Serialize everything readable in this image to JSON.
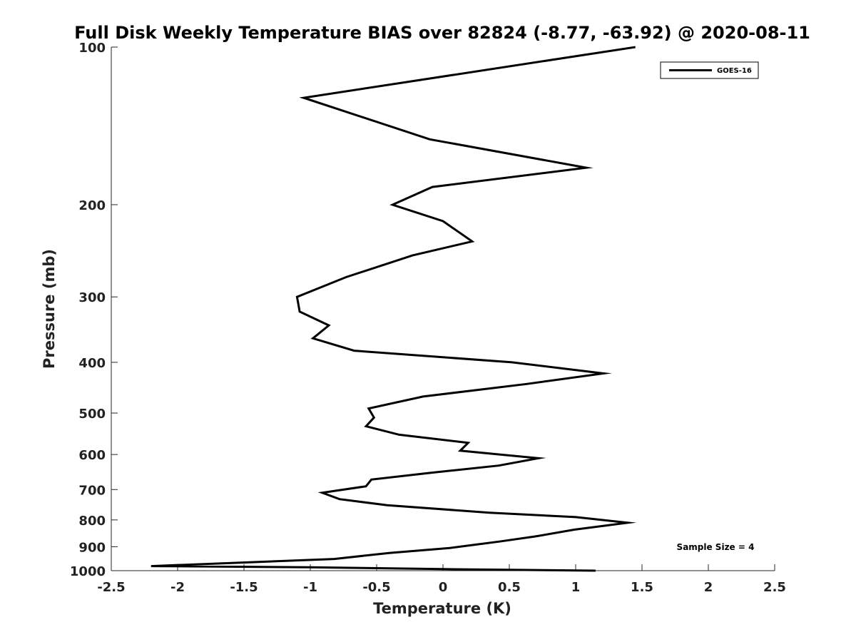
{
  "chart_data": {
    "type": "line",
    "title": "Full Disk Weekly Temperature BIAS over 82824 (-8.77, -63.92) @ 2020-08-11",
    "xlabel": "Temperature (K)",
    "ylabel": "Pressure (mb)",
    "xlim": [
      -2.5,
      2.5
    ],
    "ylim": [
      100,
      1000
    ],
    "y_scale": "log",
    "y_reversed": true,
    "x_ticks": [
      -2.5,
      -2,
      -1.5,
      -1,
      -0.5,
      0,
      0.5,
      1,
      1.5,
      2,
      2.5
    ],
    "x_tick_labels": [
      "-2.5",
      "-2",
      "-1.5",
      "-1",
      "-0.5",
      "0",
      "0.5",
      "1",
      "1.5",
      "2",
      "2.5"
    ],
    "y_ticks": [
      100,
      200,
      300,
      400,
      500,
      600,
      700,
      800,
      900,
      1000
    ],
    "y_tick_labels": [
      "100",
      "200",
      "300",
      "400",
      "500",
      "600",
      "700",
      "800",
      "900",
      "1000"
    ],
    "grid": false,
    "legend_position": "top-right",
    "annotation": "Sample Size = 4",
    "colors": {
      "line": "#000000"
    },
    "series": [
      {
        "name": "GOES-16",
        "points": [
          [
            1.45,
            100
          ],
          [
            -1.05,
            125
          ],
          [
            -0.1,
            150
          ],
          [
            1.08,
            170
          ],
          [
            -0.08,
            185
          ],
          [
            -0.38,
            200
          ],
          [
            0,
            215
          ],
          [
            0.22,
            235
          ],
          [
            -0.23,
            250
          ],
          [
            -0.73,
            275
          ],
          [
            -1.1,
            300
          ],
          [
            -1.08,
            320
          ],
          [
            -0.86,
            340
          ],
          [
            -0.98,
            360
          ],
          [
            -0.67,
            380
          ],
          [
            0.52,
            400
          ],
          [
            1.21,
            420
          ],
          [
            0.63,
            440
          ],
          [
            -0.15,
            465
          ],
          [
            -0.56,
            490
          ],
          [
            -0.52,
            510
          ],
          [
            -0.58,
            530
          ],
          [
            -0.33,
            550
          ],
          [
            0.19,
            570
          ],
          [
            0.13,
            590
          ],
          [
            0.72,
            610
          ],
          [
            0.42,
            630
          ],
          [
            -0.09,
            650
          ],
          [
            -0.54,
            670
          ],
          [
            -0.58,
            690
          ],
          [
            -0.91,
            710
          ],
          [
            -0.78,
            730
          ],
          [
            -0.42,
            750
          ],
          [
            0.35,
            775
          ],
          [
            1.0,
            790
          ],
          [
            1.39,
            810
          ],
          [
            0.99,
            835
          ],
          [
            0.7,
            860
          ],
          [
            0.42,
            880
          ],
          [
            0.05,
            905
          ],
          [
            -0.4,
            925
          ],
          [
            -0.82,
            950
          ],
          [
            -2.2,
            980
          ],
          [
            -1.0,
            985
          ],
          [
            0.0,
            993
          ],
          [
            1.15,
            1000
          ]
        ]
      }
    ]
  }
}
